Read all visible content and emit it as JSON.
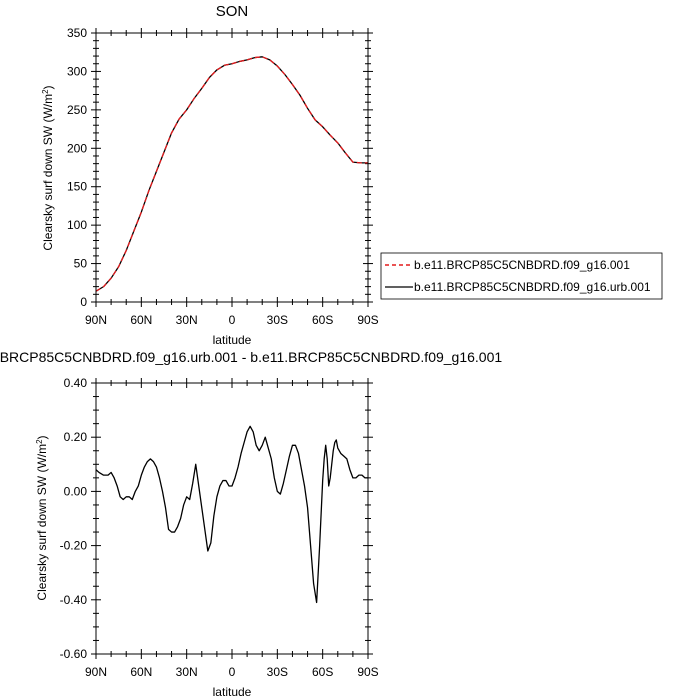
{
  "chart_data": [
    {
      "type": "line",
      "title": "SON",
      "xlabel": "latitude",
      "ylabel": "Clearsky surf down SW (W/m",
      "ylabel_sup": "2",
      "ylabel_close": ")",
      "xlim": [
        -90,
        90
      ],
      "ylim": [
        0,
        350
      ],
      "x_ticks": [
        -90,
        -60,
        -30,
        0,
        30,
        60,
        90
      ],
      "x_tick_labels": [
        "90N",
        "60N",
        "30N",
        "0",
        "30S",
        "60S",
        "90S"
      ],
      "y_ticks": [
        0,
        50,
        100,
        150,
        200,
        250,
        300,
        350
      ],
      "y_tick_labels": [
        "0",
        "50",
        "100",
        "150",
        "200",
        "250",
        "300",
        "350"
      ],
      "legend_position": "right",
      "series": [
        {
          "name": "b.e11.BRCP85C5CNBDRD.f09_g16.001",
          "color": "#e41a1c",
          "dash": "dashed",
          "x": [
            -90,
            -85,
            -80,
            -75,
            -70,
            -65,
            -60,
            -55,
            -50,
            -45,
            -40,
            -35,
            -30,
            -25,
            -20,
            -15,
            -10,
            -5,
            0,
            5,
            10,
            15,
            20,
            25,
            30,
            35,
            40,
            45,
            50,
            55,
            60,
            65,
            70,
            75,
            80,
            85,
            90
          ],
          "y": [
            14,
            20,
            31,
            46,
            67,
            92,
            117,
            145,
            170,
            195,
            220,
            238,
            250,
            265,
            278,
            292,
            302,
            308,
            310,
            313,
            315,
            318,
            319,
            315,
            307,
            296,
            283,
            269,
            252,
            237,
            228,
            217,
            207,
            194,
            182,
            181,
            181
          ]
        },
        {
          "name": "b.e11.BRCP85C5CNBDRD.f09_g16.urb.001",
          "color": "#000000",
          "dash": "solid",
          "x": [
            -90,
            -85,
            -80,
            -75,
            -70,
            -65,
            -60,
            -55,
            -50,
            -45,
            -40,
            -35,
            -30,
            -25,
            -20,
            -15,
            -10,
            -5,
            0,
            5,
            10,
            15,
            20,
            25,
            30,
            35,
            40,
            45,
            50,
            55,
            60,
            65,
            70,
            75,
            80,
            85,
            90
          ],
          "y": [
            14,
            20,
            31,
            46,
            67,
            92,
            117,
            145,
            170,
            195,
            220,
            238,
            250,
            265,
            278,
            292,
            302,
            308,
            310,
            313,
            315,
            318,
            319,
            315,
            307,
            296,
            283,
            269,
            252,
            237,
            228,
            217,
            207,
            194,
            182,
            181,
            181
          ]
        }
      ]
    },
    {
      "type": "line",
      "title": "b.e11.BRCP85C5CNBDRD.f09_g16.urb.001 - b.e11.BRCP85C5CNBDRD.f09_g16.001",
      "xlabel": "latitude",
      "ylabel": "Clearsky surf down SW (W/m",
      "ylabel_sup": "2",
      "ylabel_close": ")",
      "xlim": [
        -90,
        90
      ],
      "ylim": [
        -0.6,
        0.4
      ],
      "x_ticks": [
        -90,
        -60,
        -30,
        0,
        30,
        60,
        90
      ],
      "x_tick_labels": [
        "90N",
        "60N",
        "30N",
        "0",
        "30S",
        "60S",
        "90S"
      ],
      "y_ticks": [
        -0.6,
        -0.4,
        -0.2,
        0,
        0.2,
        0.4
      ],
      "y_tick_labels": [
        "-0.60",
        "-0.40",
        "-0.20",
        "0.00",
        "0.20",
        "0.40"
      ],
      "series": [
        {
          "color": "#000000",
          "dash": "solid",
          "x": [
            -90,
            -88,
            -85,
            -82,
            -80,
            -78,
            -76,
            -74,
            -72,
            -70,
            -68,
            -66,
            -64,
            -62,
            -60,
            -58,
            -56,
            -54,
            -52,
            -50,
            -48,
            -46,
            -44,
            -42,
            -40,
            -38,
            -36,
            -34,
            -32,
            -30,
            -28,
            -26,
            -24,
            -22,
            -20,
            -18,
            -16,
            -14,
            -12,
            -10,
            -8,
            -6,
            -4,
            -2,
            0,
            2,
            4,
            6,
            8,
            10,
            12,
            14,
            16,
            18,
            20,
            22,
            24,
            26,
            28,
            30,
            32,
            34,
            36,
            38,
            40,
            42,
            44,
            46,
            48,
            50,
            52,
            54,
            56,
            58,
            60,
            61,
            62,
            63,
            64,
            65,
            66,
            67,
            68,
            69,
            70,
            72,
            74,
            76,
            78,
            80,
            82,
            84,
            86,
            88,
            90
          ],
          "y": [
            0.08,
            0.07,
            0.06,
            0.06,
            0.07,
            0.05,
            0.02,
            -0.02,
            -0.03,
            -0.02,
            -0.02,
            -0.03,
            0.0,
            0.02,
            0.06,
            0.09,
            0.11,
            0.12,
            0.11,
            0.09,
            0.05,
            0.0,
            -0.06,
            -0.14,
            -0.15,
            -0.15,
            -0.13,
            -0.1,
            -0.05,
            -0.02,
            -0.03,
            0.03,
            0.1,
            0.02,
            -0.06,
            -0.14,
            -0.22,
            -0.19,
            -0.09,
            -0.02,
            0.02,
            0.04,
            0.04,
            0.02,
            0.02,
            0.05,
            0.09,
            0.14,
            0.18,
            0.22,
            0.24,
            0.22,
            0.17,
            0.15,
            0.17,
            0.2,
            0.16,
            0.12,
            0.05,
            0.0,
            -0.01,
            0.03,
            0.08,
            0.13,
            0.17,
            0.17,
            0.14,
            0.08,
            0.02,
            -0.06,
            -0.2,
            -0.34,
            -0.41,
            -0.2,
            0.04,
            0.12,
            0.17,
            0.12,
            0.02,
            0.05,
            0.1,
            0.15,
            0.18,
            0.19,
            0.16,
            0.14,
            0.13,
            0.12,
            0.08,
            0.05,
            0.05,
            0.06,
            0.06,
            0.05,
            0.05
          ]
        }
      ]
    }
  ]
}
